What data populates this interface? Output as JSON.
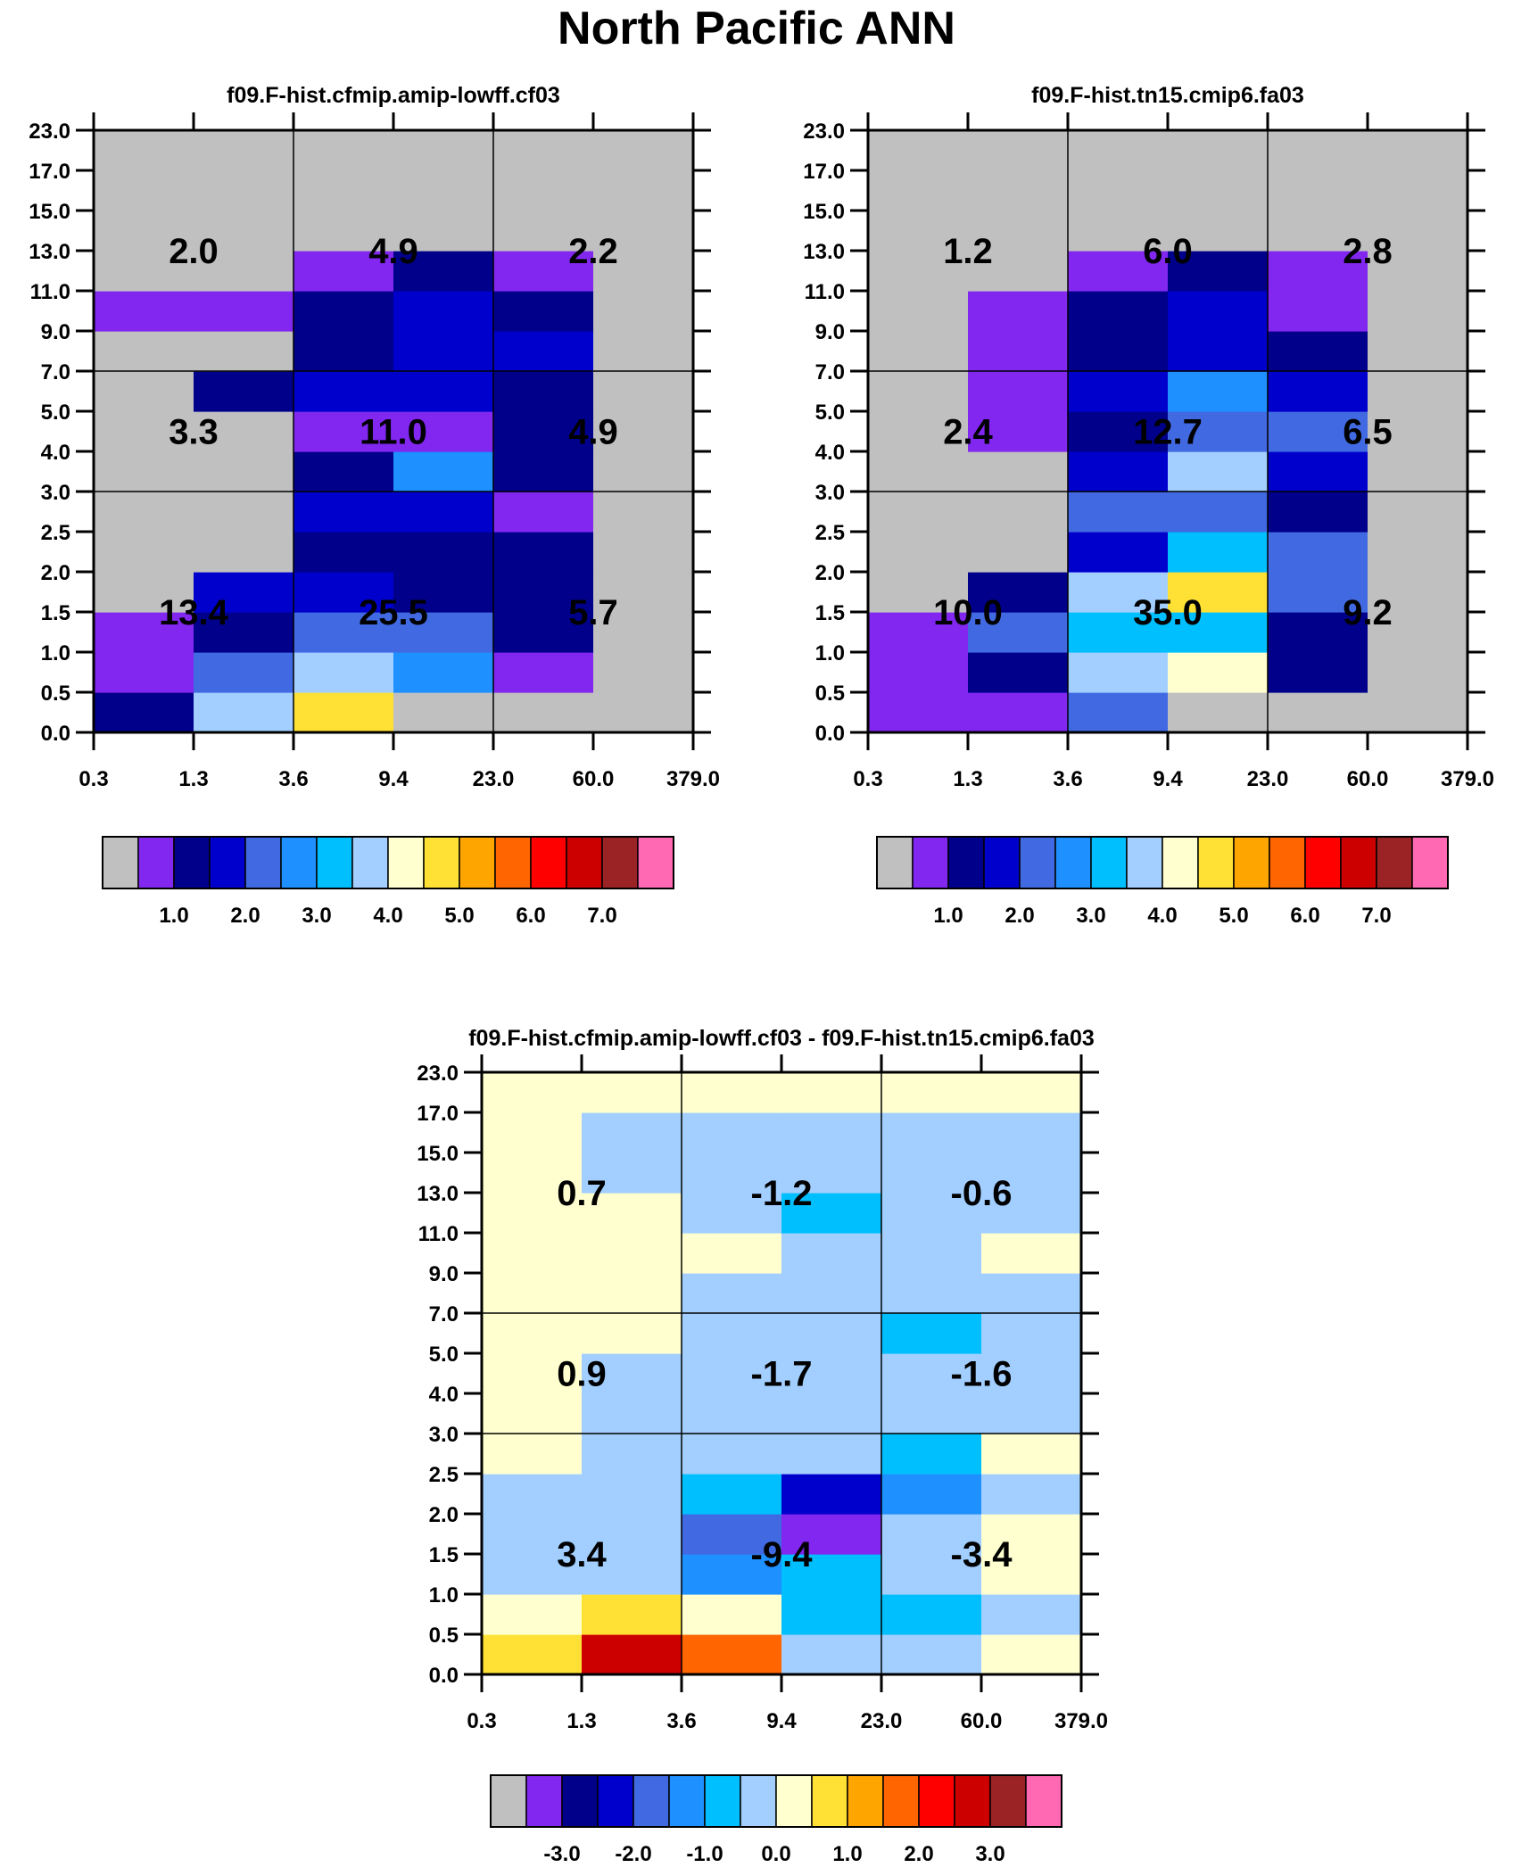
{
  "page": {
    "title": "North Pacific ANN"
  },
  "chart_data": [
    {
      "id": "panel1",
      "type": "heatmap",
      "title": "f09.F-hist.cfmip.amip-lowff.cf03",
      "xlabel": "",
      "ylabel": "",
      "x_ticks": [
        "0.3",
        "1.3",
        "3.6",
        "9.4",
        "23.0",
        "60.0",
        "379.0"
      ],
      "y_ticks": [
        "0.0",
        "0.5",
        "1.0",
        "1.5",
        "2.0",
        "2.5",
        "3.0",
        "4.0",
        "5.0",
        "7.0",
        "9.0",
        "11.0",
        "13.0",
        "15.0",
        "17.0",
        "23.0"
      ],
      "grid_rows_bottom_to_top": [
        [
          2,
          7,
          9,
          0,
          0,
          0
        ],
        [
          1,
          4,
          7,
          5,
          1,
          0
        ],
        [
          1,
          2,
          4,
          4,
          2,
          0
        ],
        [
          0,
          3,
          3,
          2,
          2,
          0
        ],
        [
          0,
          0,
          2,
          2,
          2,
          0
        ],
        [
          0,
          0,
          3,
          3,
          1,
          0
        ],
        [
          0,
          0,
          2,
          5,
          2,
          0
        ],
        [
          0,
          0,
          1,
          1,
          2,
          0
        ],
        [
          0,
          2,
          3,
          3,
          2,
          0
        ],
        [
          0,
          0,
          2,
          3,
          3,
          0
        ],
        [
          1,
          1,
          2,
          3,
          2,
          0
        ],
        [
          0,
          0,
          1,
          2,
          1,
          0
        ],
        [
          0,
          0,
          0,
          0,
          0,
          0
        ],
        [
          0,
          0,
          0,
          0,
          0,
          0
        ],
        [
          0,
          0,
          0,
          0,
          0,
          0
        ]
      ],
      "region_totals": [
        [
          "2.0",
          "4.9",
          "2.2"
        ],
        [
          "3.3",
          "11.0",
          "4.9"
        ],
        [
          "13.4",
          "25.5",
          "5.7"
        ]
      ],
      "colorbar": {
        "labels": [
          "1.0",
          "2.0",
          "3.0",
          "4.0",
          "5.0",
          "6.0",
          "7.0"
        ]
      }
    },
    {
      "id": "panel2",
      "type": "heatmap",
      "title": "f09.F-hist.tn15.cmip6.fa03",
      "xlabel": "",
      "ylabel": "",
      "x_ticks": [
        "0.3",
        "1.3",
        "3.6",
        "9.4",
        "23.0",
        "60.0",
        "379.0"
      ],
      "y_ticks": [
        "0.0",
        "0.5",
        "1.0",
        "1.5",
        "2.0",
        "2.5",
        "3.0",
        "4.0",
        "5.0",
        "7.0",
        "9.0",
        "11.0",
        "13.0",
        "15.0",
        "17.0",
        "23.0"
      ],
      "grid_rows_bottom_to_top": [
        [
          1,
          1,
          4,
          0,
          0,
          0
        ],
        [
          1,
          2,
          7,
          8,
          2,
          0
        ],
        [
          1,
          4,
          6,
          6,
          2,
          0
        ],
        [
          0,
          2,
          7,
          9,
          4,
          0
        ],
        [
          0,
          0,
          3,
          6,
          4,
          0
        ],
        [
          0,
          0,
          4,
          4,
          2,
          0
        ],
        [
          0,
          0,
          3,
          7,
          3,
          0
        ],
        [
          0,
          1,
          2,
          4,
          4,
          0
        ],
        [
          0,
          1,
          3,
          5,
          3,
          0
        ],
        [
          0,
          1,
          2,
          3,
          2,
          0
        ],
        [
          0,
          1,
          2,
          3,
          1,
          0
        ],
        [
          0,
          0,
          1,
          2,
          1,
          0
        ],
        [
          0,
          0,
          0,
          0,
          0,
          0
        ],
        [
          0,
          0,
          0,
          0,
          0,
          0
        ],
        [
          0,
          0,
          0,
          0,
          0,
          0
        ]
      ],
      "region_totals": [
        [
          "1.2",
          "6.0",
          "2.8"
        ],
        [
          "2.4",
          "12.7",
          "6.5"
        ],
        [
          "10.0",
          "35.0",
          "9.2"
        ]
      ],
      "colorbar": {
        "labels": [
          "1.0",
          "2.0",
          "3.0",
          "4.0",
          "5.0",
          "6.0",
          "7.0"
        ]
      }
    },
    {
      "id": "panel3",
      "type": "heatmap",
      "title": "f09.F-hist.cfmip.amip-lowff.cf03 - f09.F-hist.tn15.cmip6.fa03",
      "xlabel": "",
      "ylabel": "",
      "x_ticks": [
        "0.3",
        "1.3",
        "3.6",
        "9.4",
        "23.0",
        "60.0",
        "379.0"
      ],
      "y_ticks": [
        "0.0",
        "0.5",
        "1.0",
        "1.5",
        "2.0",
        "2.5",
        "3.0",
        "4.0",
        "5.0",
        "7.0",
        "9.0",
        "11.0",
        "13.0",
        "15.0",
        "17.0",
        "23.0"
      ],
      "grid_rows_bottom_to_top": [
        [
          9,
          13,
          11,
          7,
          7,
          8
        ],
        [
          8,
          9,
          8,
          6,
          6,
          7
        ],
        [
          7,
          7,
          5,
          6,
          7,
          8
        ],
        [
          7,
          7,
          4,
          1,
          7,
          8
        ],
        [
          7,
          7,
          6,
          3,
          5,
          7
        ],
        [
          8,
          7,
          7,
          7,
          6,
          8
        ],
        [
          8,
          7,
          7,
          7,
          7,
          7
        ],
        [
          8,
          7,
          7,
          7,
          7,
          7
        ],
        [
          8,
          8,
          7,
          7,
          6,
          7
        ],
        [
          8,
          8,
          7,
          7,
          7,
          7
        ],
        [
          8,
          8,
          8,
          7,
          7,
          8
        ],
        [
          8,
          8,
          7,
          6,
          7,
          7
        ],
        [
          8,
          7,
          7,
          7,
          7,
          7
        ],
        [
          8,
          7,
          7,
          7,
          7,
          7
        ],
        [
          8,
          8,
          8,
          8,
          8,
          8
        ]
      ],
      "region_totals": [
        [
          "0.7",
          "-1.2",
          "-0.6"
        ],
        [
          "0.9",
          "-1.7",
          "-1.6"
        ],
        [
          "3.4",
          "-9.4",
          "-3.4"
        ]
      ],
      "colorbar": {
        "labels": [
          "-3.0",
          "-2.0",
          "-1.0",
          "0.0",
          "1.0",
          "2.0",
          "3.0"
        ]
      }
    }
  ],
  "palette": [
    "#c0c0c0",
    "#8127f0",
    "#00008b",
    "#0000cd",
    "#4169e1",
    "#1e90ff",
    "#00bfff",
    "#a2cfff",
    "#ffffd0",
    "#ffe135",
    "#ffa500",
    "#ff6500",
    "#ff0000",
    "#cd0000",
    "#9b2325",
    "#ff69b4"
  ]
}
